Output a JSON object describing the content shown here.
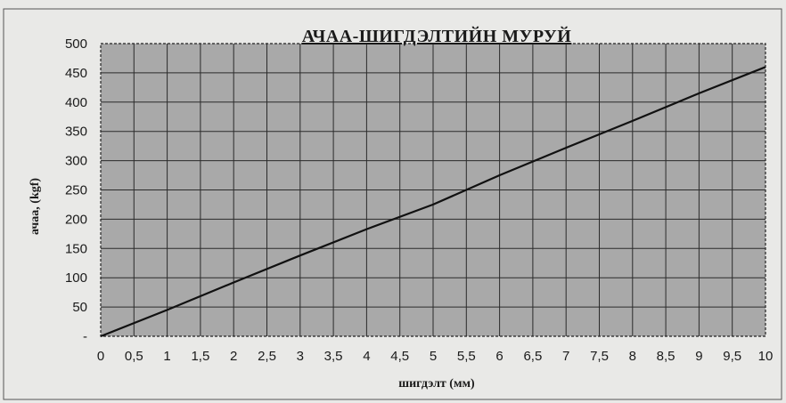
{
  "chart_data": {
    "type": "line",
    "title": "АЧАА-ШИГДЭЛТИЙН МУРУЙ",
    "xlabel": "шигдэлт (мм)",
    "ylabel": "ачаа, (kgf)",
    "x_ticks": [
      "0",
      "0,5",
      "1",
      "1,5",
      "2",
      "2,5",
      "3",
      "3,5",
      "4",
      "4,5",
      "5",
      "5,5",
      "6",
      "6,5",
      "7",
      "7,5",
      "8",
      "8,5",
      "9",
      "9,5",
      "10"
    ],
    "y_ticks": [
      "-",
      "50",
      "100",
      "150",
      "200",
      "250",
      "300",
      "350",
      "400",
      "450",
      "500"
    ],
    "xlim": [
      0,
      10
    ],
    "ylim": [
      0,
      500
    ],
    "grid": true,
    "legend": "none",
    "colors": {
      "plot_bg": "#a9a9a9",
      "line": "#111111",
      "grid": "#2b2b2b",
      "page_bg": "#e9e9e7"
    },
    "series": [
      {
        "x": [
          0,
          1,
          2,
          3,
          4,
          5,
          6,
          7,
          8,
          9,
          10
        ],
        "values": [
          0,
          45,
          92,
          138,
          183,
          225,
          275,
          322,
          368,
          415,
          460
        ]
      }
    ]
  }
}
